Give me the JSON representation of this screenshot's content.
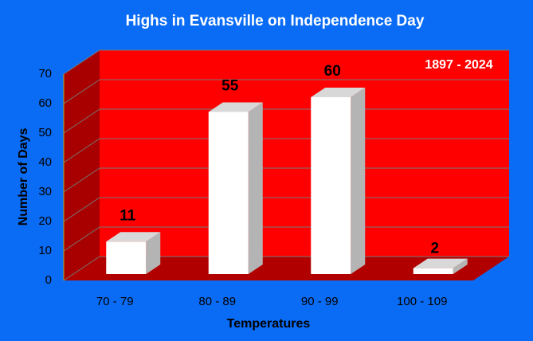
{
  "chart_data": {
    "type": "bar3d",
    "title": "Highs in Evansville on Independence Day",
    "annotation": "1897 - 2024",
    "x_label": "Temperatures",
    "y_label": "Number of Days",
    "categories": [
      "70 - 79",
      "80 - 89",
      "90 - 99",
      "100 - 109"
    ],
    "values": [
      11,
      55,
      60,
      2
    ],
    "color": "#ffffff",
    "ylim": [
      0,
      70
    ],
    "yticks": [
      0,
      10,
      20,
      30,
      40,
      50,
      60,
      70
    ],
    "grid": true,
    "background": "#0a6cf5",
    "wall_color": "#ff0000"
  }
}
